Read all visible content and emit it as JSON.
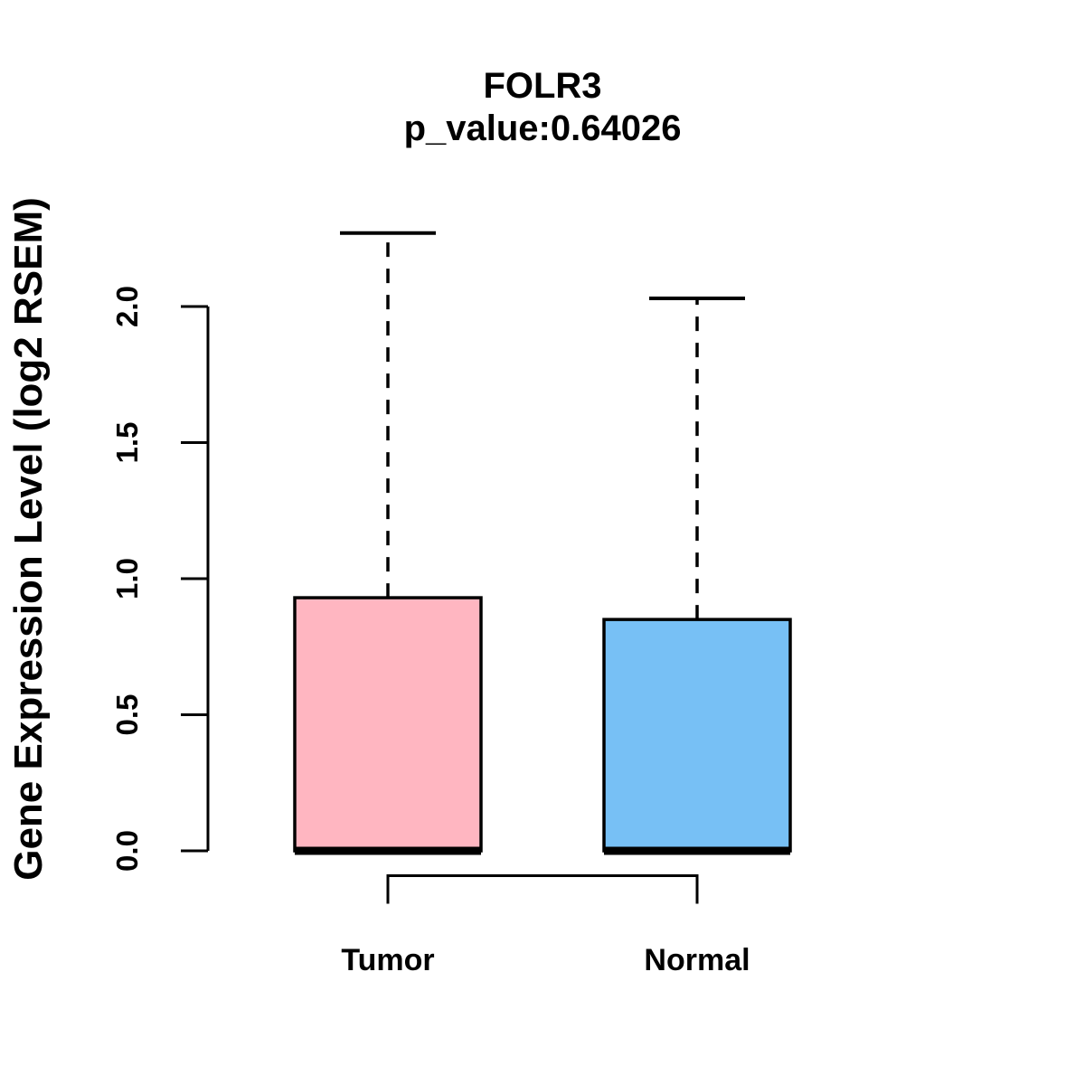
{
  "page": {
    "background_color": "#FFFFFF",
    "text_color": "#000000"
  },
  "chart_data": {
    "type": "boxplot",
    "title": "FOLR3",
    "subtitle": "p_value:0.64026",
    "ylabel": "Gene Expression Level (log2 RSEM)",
    "xlabel": "",
    "ylim": [
      0,
      2.0
    ],
    "y_ticks": [
      0,
      0.5,
      1.0,
      1.5,
      2.0
    ],
    "y_tick_labels": [
      "0.0",
      "0.5",
      "1.0",
      "1.5",
      "2.0"
    ],
    "grid": false,
    "legend_position": "none",
    "categories": [
      "Tumor",
      "Normal"
    ],
    "series": [
      {
        "name": "Tumor",
        "lower_whisker": 0,
        "q1": 0,
        "median": 0,
        "q3": 0.93,
        "upper_whisker": 2.27,
        "fill_color": "#FFB6C1",
        "stroke_color": "#000000"
      },
      {
        "name": "Normal",
        "lower_whisker": 0,
        "q1": 0,
        "median": 0,
        "q3": 0.85,
        "upper_whisker": 2.03,
        "fill_color": "#77C0F5",
        "stroke_color": "#000000"
      }
    ],
    "axis_color": "#000000"
  }
}
